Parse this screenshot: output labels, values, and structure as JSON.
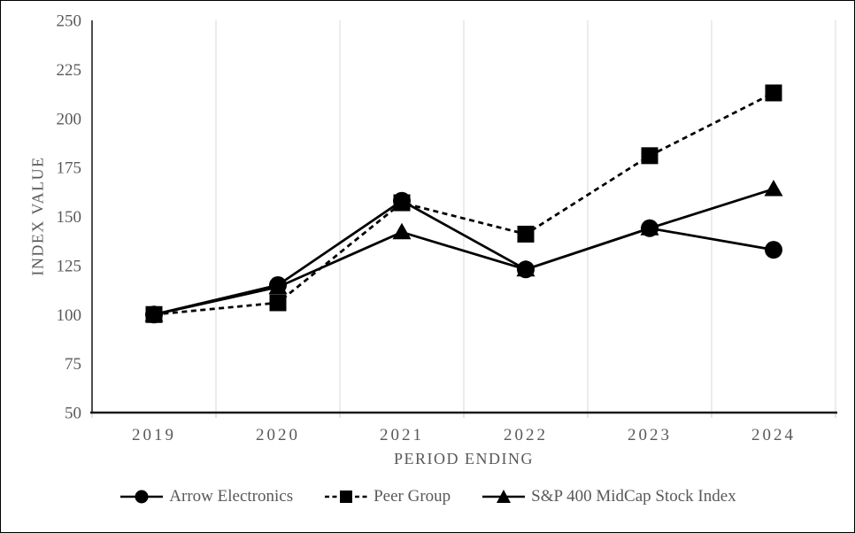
{
  "chart_data": {
    "type": "line",
    "title": "",
    "xlabel": "PERIOD ENDING",
    "ylabel": "INDEX VALUE",
    "categories": [
      "2019",
      "2020",
      "2021",
      "2022",
      "2023",
      "2024"
    ],
    "ylim": [
      50,
      250
    ],
    "yticks": [
      50,
      75,
      100,
      125,
      150,
      175,
      200,
      225,
      250
    ],
    "grid": "vertical",
    "legend_position": "bottom",
    "series": [
      {
        "name": "Arrow Electronics",
        "marker": "circle",
        "line": "solid",
        "values": [
          100,
          115,
          158,
          123,
          144,
          133
        ]
      },
      {
        "name": "Peer Group",
        "marker": "square",
        "line": "dashed",
        "values": [
          100,
          106,
          157,
          141,
          181,
          213
        ]
      },
      {
        "name": "S&P 400 MidCap Stock Index",
        "marker": "triangle",
        "line": "solid",
        "values": [
          100,
          114,
          142,
          123,
          144,
          164
        ]
      }
    ],
    "draw_order": [
      2,
      0,
      1
    ],
    "colors": {
      "series": "#000000",
      "grid": "#d9d9d9",
      "tick": "#c9c9c9",
      "axis_y": "#4d4d4d",
      "axis_x": "#1a1a1a",
      "text": "#595959"
    }
  }
}
